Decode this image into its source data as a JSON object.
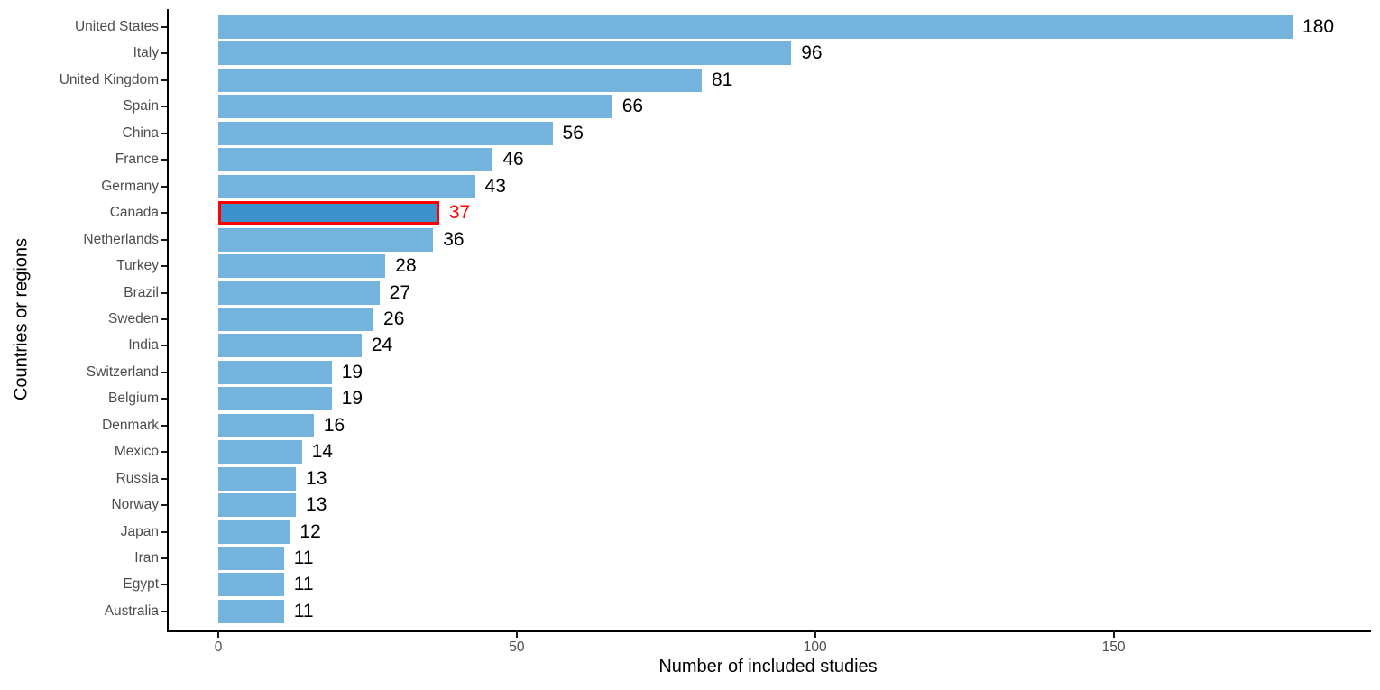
{
  "chart_data": {
    "type": "bar",
    "orientation": "horizontal",
    "title": "",
    "xlabel": "Number of included studies",
    "ylabel": "Countries or regions",
    "xlim": [
      0,
      201
    ],
    "xticks": [
      0,
      50,
      100,
      150
    ],
    "grid": false,
    "legend": false,
    "categories": [
      "United States",
      "Italy",
      "United Kingdom",
      "Spain",
      "China",
      "France",
      "Germany",
      "Canada",
      "Netherlands",
      "Turkey",
      "Brazil",
      "Sweden",
      "India",
      "Switzerland",
      "Belgium",
      "Denmark",
      "Mexico",
      "Russia",
      "Norway",
      "Japan",
      "Iran",
      "Egypt",
      "Australia"
    ],
    "values": [
      180,
      96,
      81,
      66,
      56,
      46,
      43,
      37,
      36,
      28,
      27,
      26,
      24,
      19,
      19,
      16,
      14,
      13,
      13,
      12,
      11,
      11,
      11
    ],
    "highlight": {
      "category": "Canada",
      "value": 37,
      "fill": "#3E92CC",
      "border": "#FF0000",
      "label_color": "#FF0000"
    },
    "colors": {
      "bar_fill": "#74B4DC",
      "value_label": "#000000",
      "axis_text": "#4D4D4D",
      "axis_title": "#000000",
      "axis_line": "#000000"
    }
  }
}
